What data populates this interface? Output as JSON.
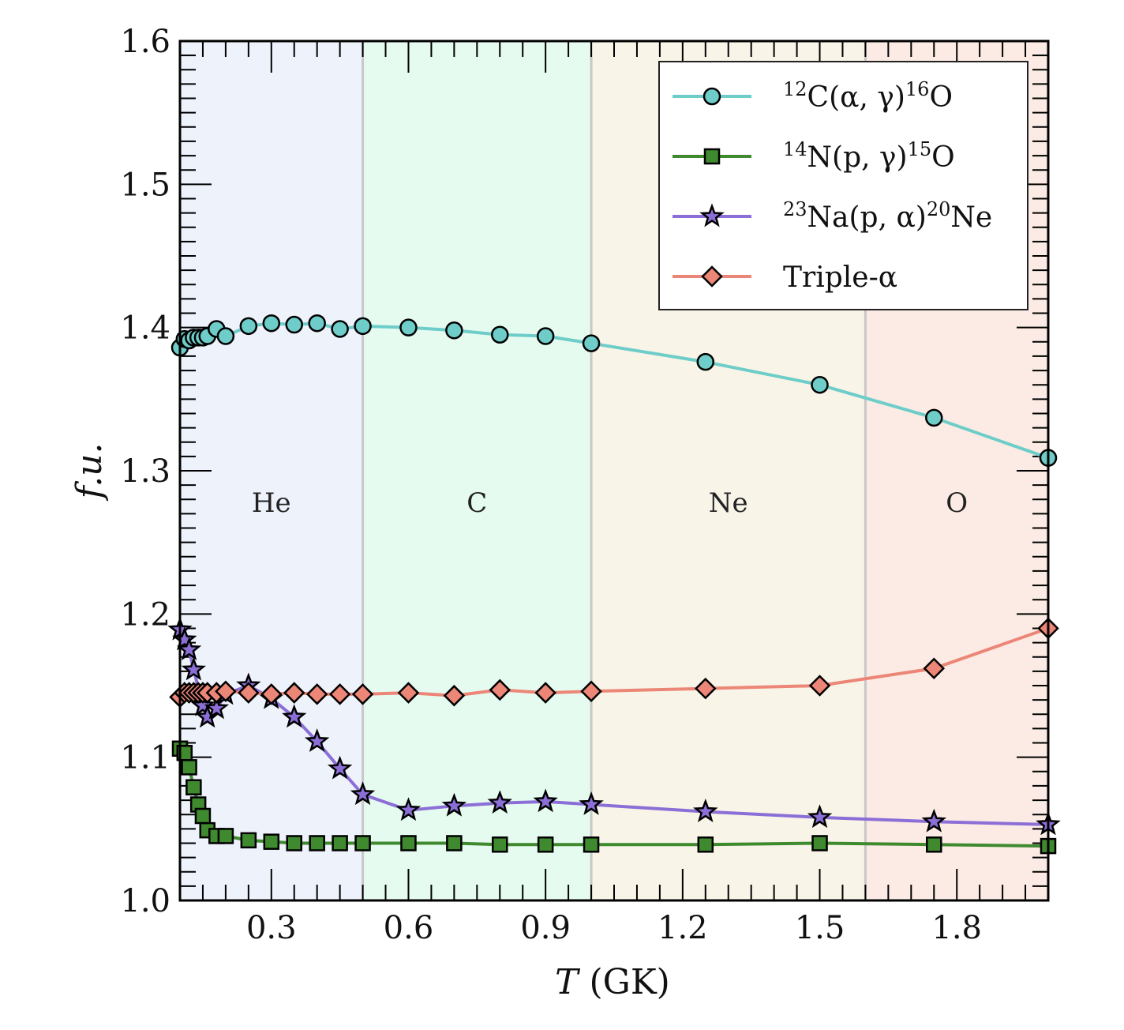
{
  "chart_data": {
    "type": "line",
    "xlabel": "T (GK)",
    "xlabel_var": "T",
    "xlabel_unit": "(GK)",
    "ylabel": "f.u.",
    "xlim": [
      0.1,
      2.0
    ],
    "ylim": [
      1.0,
      1.6
    ],
    "xticks": [
      "0.3",
      "0.6",
      "0.9",
      "1.2",
      "1.5",
      "1.8"
    ],
    "yticks": [
      "1.0",
      "1.1",
      "1.2",
      "1.3",
      "1.4",
      "1.5",
      "1.6"
    ],
    "grid": false,
    "legend_placement": "top-right",
    "regions": [
      {
        "label": "He",
        "from": 0.1,
        "to": 0.5,
        "color": "#eef2fb"
      },
      {
        "label": "C",
        "from": 0.5,
        "to": 1.0,
        "color": "#e6fbf0"
      },
      {
        "label": "Ne",
        "from": 1.0,
        "to": 1.6,
        "color": "#f8f4e8"
      },
      {
        "label": "O",
        "from": 1.6,
        "to": 2.0,
        "color": "#fcebe4"
      }
    ],
    "series": [
      {
        "name": "12C(α, γ)16O",
        "legend": {
          "sup1": "12",
          "mid": "C(α, γ)",
          "sup2": "16",
          "end": "O"
        },
        "marker": "circle",
        "color": "#6ecdc9",
        "x": [
          0.1,
          0.11,
          0.12,
          0.13,
          0.14,
          0.15,
          0.16,
          0.18,
          0.2,
          0.25,
          0.3,
          0.35,
          0.4,
          0.45,
          0.5,
          0.6,
          0.7,
          0.8,
          0.9,
          1.0,
          1.25,
          1.5,
          1.75,
          2.0
        ],
        "y": [
          1.386,
          1.392,
          1.391,
          1.393,
          1.393,
          1.393,
          1.394,
          1.399,
          1.394,
          1.401,
          1.403,
          1.402,
          1.403,
          1.399,
          1.401,
          1.4,
          1.398,
          1.395,
          1.394,
          1.389,
          1.376,
          1.36,
          1.337,
          1.309
        ]
      },
      {
        "name": "14N(p, γ)15O",
        "legend": {
          "sup1": "14",
          "mid": "N(p, γ)",
          "sup2": "15",
          "end": "O"
        },
        "marker": "square",
        "color": "#3f8a2f",
        "x": [
          0.1,
          0.11,
          0.12,
          0.13,
          0.14,
          0.15,
          0.16,
          0.18,
          0.2,
          0.25,
          0.3,
          0.35,
          0.4,
          0.45,
          0.5,
          0.6,
          0.7,
          0.8,
          0.9,
          1.0,
          1.25,
          1.5,
          1.75,
          2.0
        ],
        "y": [
          1.106,
          1.103,
          1.093,
          1.079,
          1.067,
          1.059,
          1.049,
          1.045,
          1.045,
          1.042,
          1.041,
          1.04,
          1.04,
          1.04,
          1.04,
          1.04,
          1.04,
          1.039,
          1.039,
          1.039,
          1.039,
          1.04,
          1.039,
          1.038
        ]
      },
      {
        "name": "23Na(p, α)20Ne",
        "legend": {
          "sup1": "23",
          "mid": "Na(p, α)",
          "sup2": "20",
          "end": "Ne"
        },
        "marker": "star",
        "color": "#8b6fd6",
        "x": [
          0.1,
          0.11,
          0.12,
          0.13,
          0.15,
          0.16,
          0.18,
          0.2,
          0.25,
          0.3,
          0.35,
          0.4,
          0.45,
          0.5,
          0.6,
          0.7,
          0.8,
          0.9,
          1.0,
          1.25,
          1.5,
          1.75,
          2.0
        ],
        "y": [
          1.189,
          1.182,
          1.175,
          1.161,
          1.136,
          1.128,
          1.134,
          1.144,
          1.15,
          1.141,
          1.128,
          1.111,
          1.092,
          1.074,
          1.063,
          1.066,
          1.068,
          1.069,
          1.067,
          1.062,
          1.058,
          1.055,
          1.053
        ]
      },
      {
        "name": "Triple-α",
        "legend": {
          "sup1": "",
          "mid": "Triple-α",
          "sup2": "",
          "end": ""
        },
        "marker": "diamond",
        "color": "#ec8677",
        "x": [
          0.1,
          0.11,
          0.12,
          0.13,
          0.14,
          0.15,
          0.16,
          0.18,
          0.2,
          0.25,
          0.3,
          0.35,
          0.4,
          0.45,
          0.5,
          0.6,
          0.7,
          0.8,
          0.9,
          1.0,
          1.25,
          1.5,
          1.75,
          2.0
        ],
        "y": [
          1.142,
          1.145,
          1.145,
          1.145,
          1.145,
          1.145,
          1.145,
          1.145,
          1.146,
          1.145,
          1.144,
          1.145,
          1.144,
          1.144,
          1.144,
          1.145,
          1.143,
          1.147,
          1.145,
          1.146,
          1.148,
          1.15,
          1.162,
          1.19
        ]
      }
    ]
  }
}
